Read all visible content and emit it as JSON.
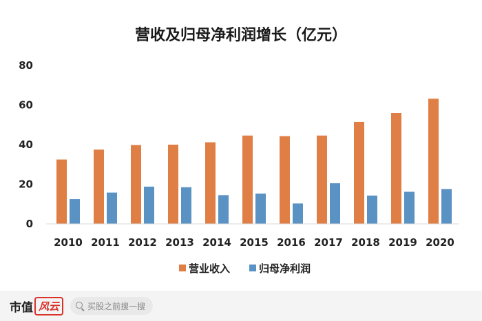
{
  "chart_data": {
    "type": "bar",
    "title": "营收及归母净利润增长（亿元）",
    "categories": [
      "2010",
      "2011",
      "2012",
      "2013",
      "2014",
      "2015",
      "2016",
      "2017",
      "2018",
      "2019",
      "2020"
    ],
    "series": [
      {
        "name": "营业收入",
        "color": "#e07f45",
        "values": [
          32.5,
          37.5,
          39.8,
          40.0,
          41.2,
          44.6,
          44.3,
          44.6,
          51.5,
          56.0,
          63.2
        ]
      },
      {
        "name": "归母净利润",
        "color": "#5a92c4",
        "values": [
          12.5,
          15.8,
          18.8,
          18.5,
          14.5,
          15.3,
          10.3,
          20.5,
          14.3,
          16.2,
          17.6
        ]
      }
    ],
    "y_ticks": [
      "0",
      "20",
      "40",
      "60",
      "80"
    ],
    "ylim": [
      0,
      80
    ],
    "grid": false,
    "legend_position": "bottom"
  },
  "footer": {
    "brand_main": "市值",
    "brand_seal": "风云",
    "search_placeholder": "买股之前搜一搜"
  }
}
